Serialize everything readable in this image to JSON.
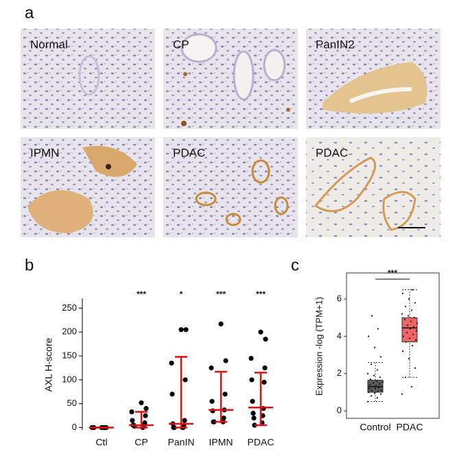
{
  "panel_a": {
    "label": "a",
    "tiles": [
      "Normal",
      "CP",
      "PanIN2",
      "IPMN",
      "PDAC",
      "PDAC"
    ]
  },
  "chart_data": [
    {
      "type": "dotplot",
      "panel": "b",
      "ylabel": "AXL H-score",
      "categories": [
        "Ctl",
        "CP",
        "PanIN",
        "IPMN",
        "PDAC"
      ],
      "annotations": [
        null,
        "***",
        "*",
        "***",
        "***"
      ],
      "points": [
        [
          0,
          0,
          0,
          0,
          0,
          0,
          0,
          0,
          0,
          0
        ],
        [
          52,
          40,
          33,
          25,
          15,
          10,
          5,
          5,
          5,
          3,
          3,
          0
        ],
        [
          205,
          205,
          135,
          100,
          70,
          15,
          8,
          5,
          0,
          0,
          0,
          0
        ],
        [
          217,
          140,
          125,
          70,
          55,
          37,
          35,
          20,
          12,
          12,
          12
        ],
        [
          200,
          185,
          145,
          125,
          100,
          95,
          55,
          40,
          30,
          25,
          20,
          10,
          5
        ]
      ],
      "median": [
        0,
        5,
        8,
        37,
        42
      ],
      "q1": [
        0,
        0,
        0,
        12,
        5
      ],
      "q3": [
        0,
        33,
        148,
        117,
        115
      ],
      "point_color": "#000000",
      "bar_color": "#e01010",
      "ylim": [
        -5,
        262
      ],
      "yticks": [
        0,
        50,
        100,
        150,
        200,
        250
      ]
    },
    {
      "type": "box",
      "panel": "c",
      "ylabel": "Expression -log  (TPM+1)",
      "categories": [
        "Control",
        "PDAC"
      ],
      "boxes": [
        {
          "whislo": 0.5,
          "q1": 1.0,
          "med": 1.3,
          "q3": 1.65,
          "whishi": 2.6
        },
        {
          "whislo": 1.8,
          "q1": 3.7,
          "med": 4.45,
          "q3": 5.0,
          "whishi": 6.5
        }
      ],
      "colors": [
        "#5a5a5a",
        "#f06464"
      ],
      "points": [
        [
          0.5,
          0.7,
          0.8,
          0.9,
          0.95,
          1.0,
          1.05,
          1.1,
          1.1,
          1.2,
          1.2,
          1.25,
          1.3,
          1.3,
          1.35,
          1.4,
          1.45,
          1.5,
          1.55,
          1.6,
          1.7,
          1.8,
          1.9,
          2.0,
          2.2,
          2.5,
          2.9,
          3.4,
          4.0,
          4.4,
          5.1
        ],
        [
          0.9,
          1.3,
          1.8,
          2.3,
          2.8,
          3.2,
          3.5,
          3.7,
          3.8,
          3.9,
          4.0,
          4.1,
          4.2,
          4.3,
          4.4,
          4.45,
          4.5,
          4.6,
          4.7,
          4.8,
          4.9,
          5.0,
          5.1,
          5.2,
          5.4,
          5.6,
          5.8,
          6.0,
          6.3,
          6.5
        ]
      ],
      "annotation": "***",
      "ylim": [
        -0.4,
        7.4
      ],
      "yticks": [
        0,
        2,
        4,
        6
      ]
    }
  ]
}
